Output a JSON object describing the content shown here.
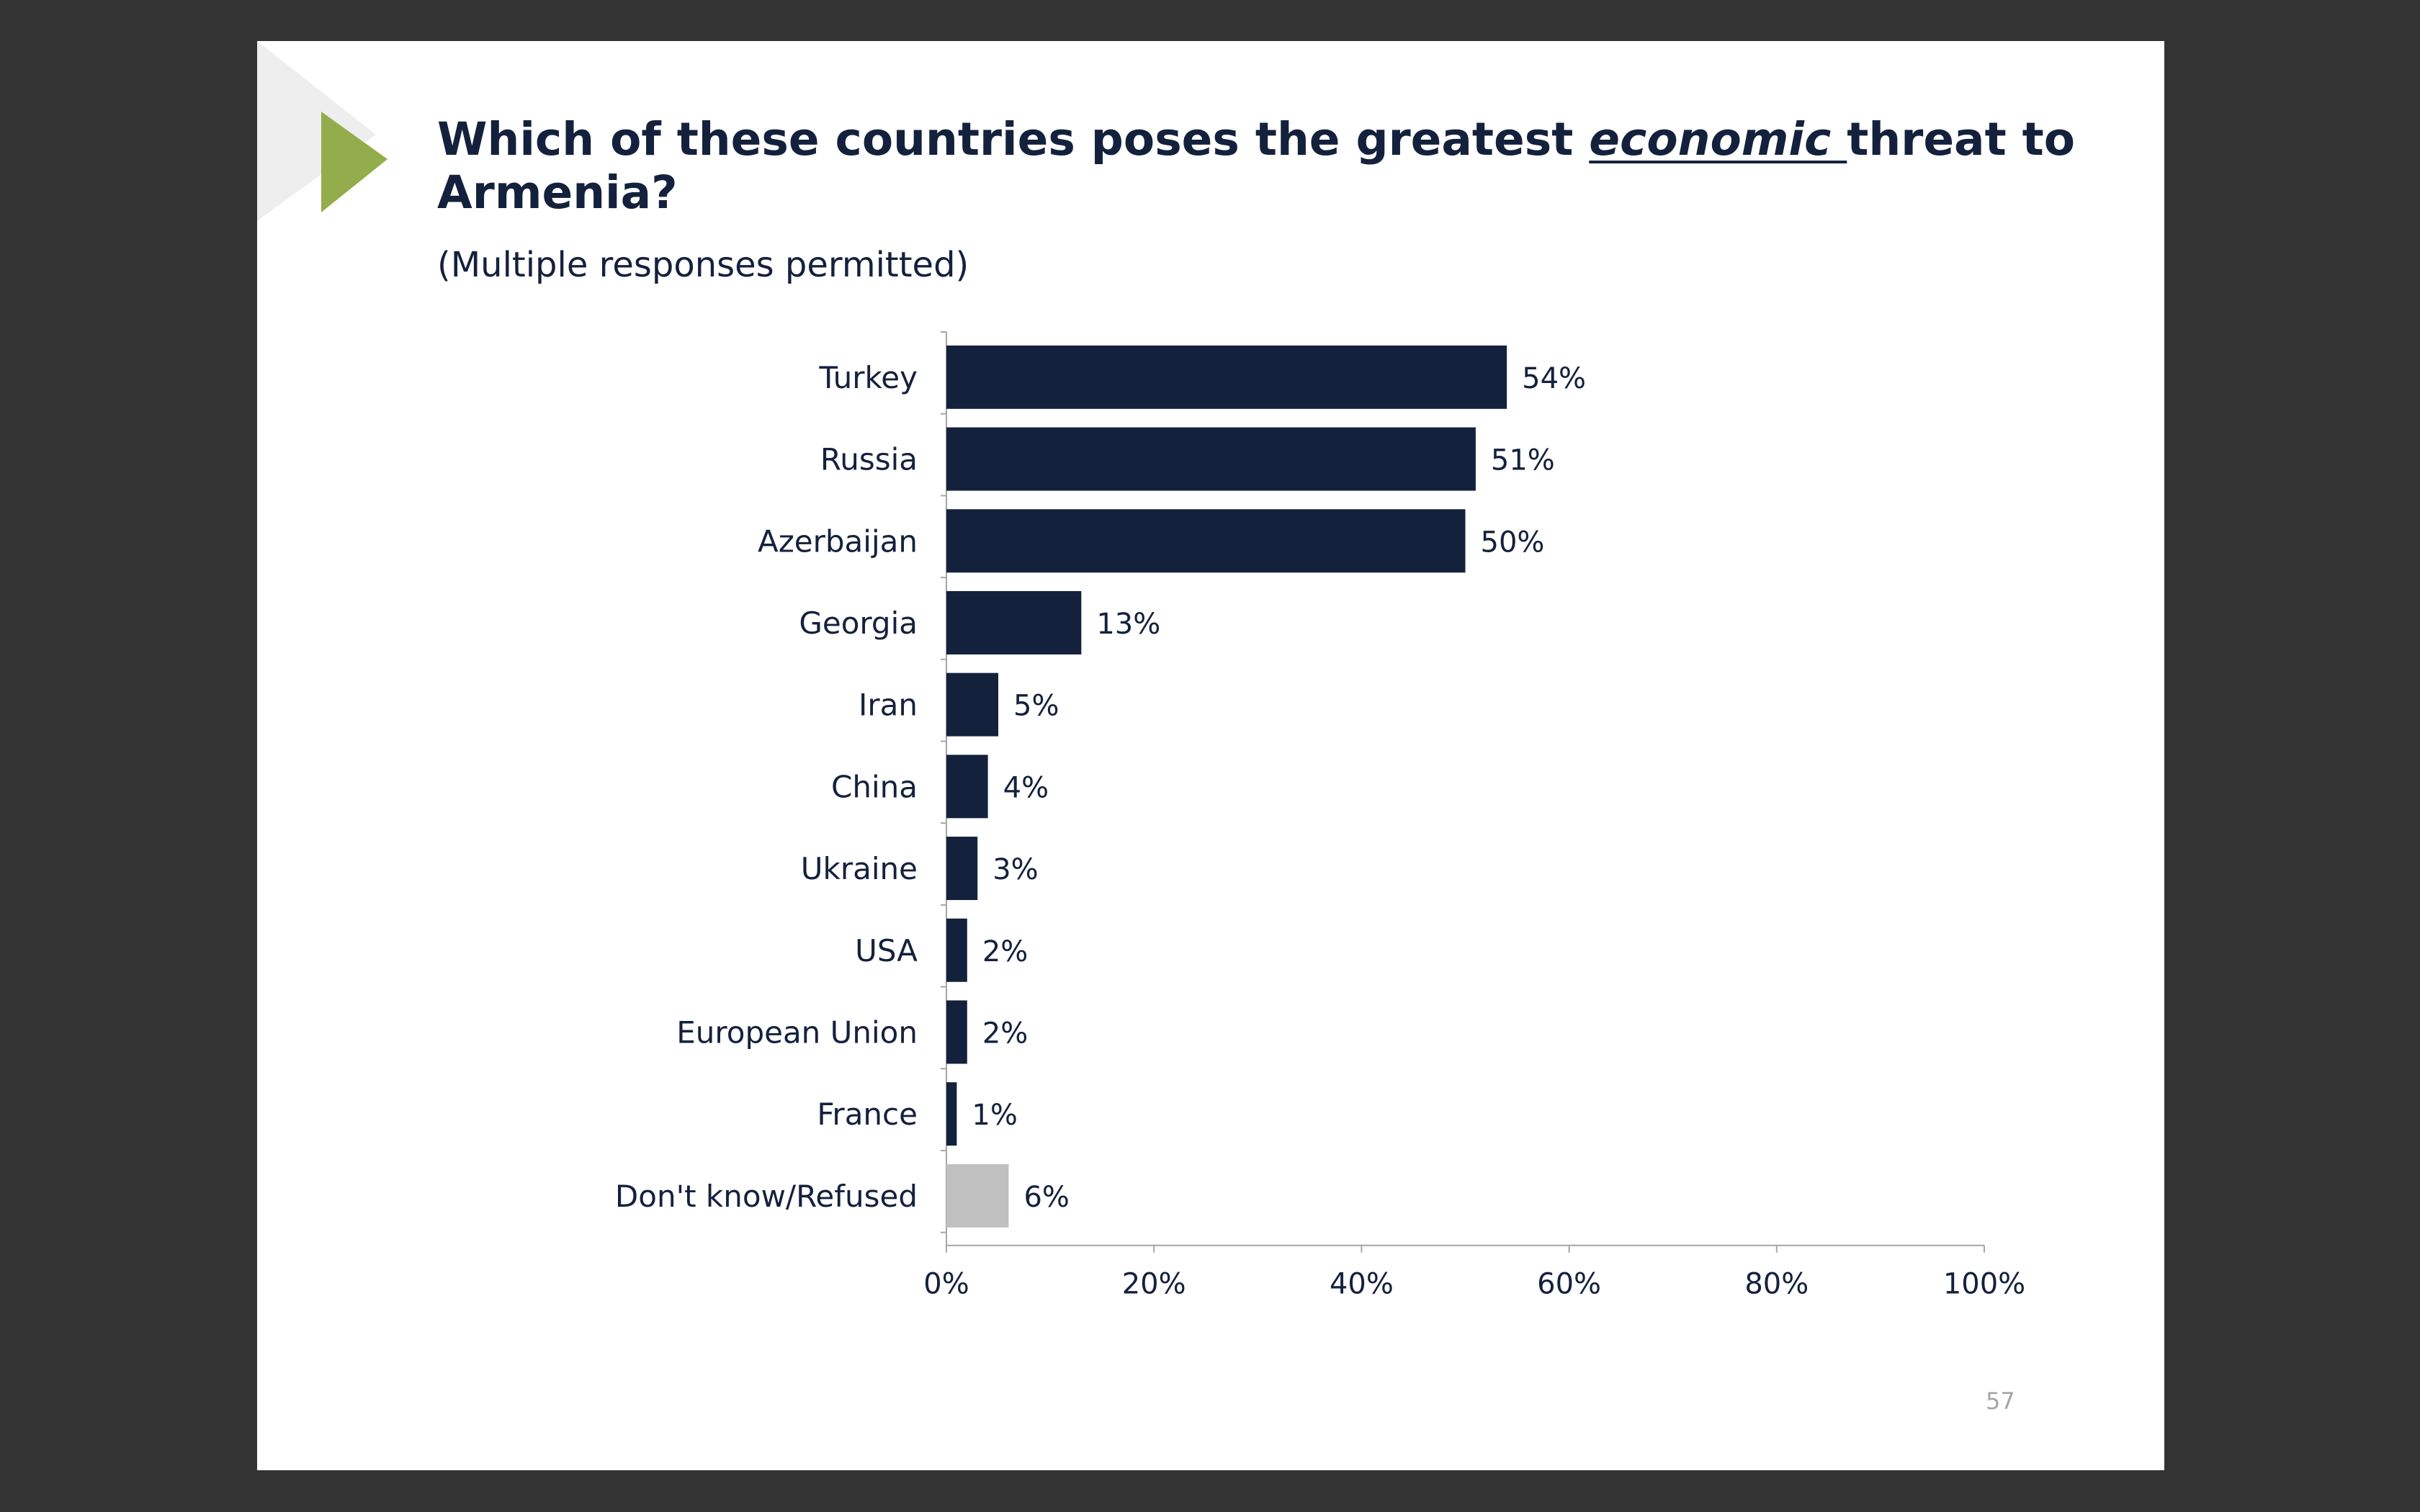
{
  "slide": {
    "title_part1": "Which of these countries poses the greatest ",
    "title_emphasis": "economic ",
    "title_part2": "threat to Armenia?",
    "subtitle": "(Multiple responses permitted)",
    "page_number": "57"
  },
  "colors": {
    "background": "#333333",
    "slide": "#ffffff",
    "bar_primary": "#14213d",
    "bar_secondary": "#c0c0c0",
    "accent_triangle": "#94ad4c",
    "deco_triangle": "#eeeeee",
    "axis": "#a6a6a6"
  },
  "chart_data": {
    "type": "bar",
    "orientation": "horizontal",
    "categories": [
      "Turkey",
      "Russia",
      "Azerbaijan",
      "Georgia",
      "Iran",
      "China",
      "Ukraine",
      "USA",
      "European Union",
      "France",
      "Don't know/Refused"
    ],
    "values": [
      54,
      51,
      50,
      13,
      5,
      4,
      3,
      2,
      2,
      1,
      6
    ],
    "data_labels": [
      "54%",
      "51%",
      "50%",
      "13%",
      "5%",
      "4%",
      "3%",
      "2%",
      "2%",
      "1%",
      "6%"
    ],
    "highlight": [
      false,
      false,
      false,
      false,
      false,
      false,
      false,
      false,
      false,
      false,
      true
    ],
    "xlim": [
      0,
      100
    ],
    "x_ticks": [
      0,
      20,
      40,
      60,
      80,
      100
    ],
    "x_tick_labels": [
      "0%",
      "20%",
      "40%",
      "60%",
      "80%",
      "100%"
    ],
    "xlabel": "",
    "ylabel": "",
    "grid": false,
    "legend": "none"
  }
}
